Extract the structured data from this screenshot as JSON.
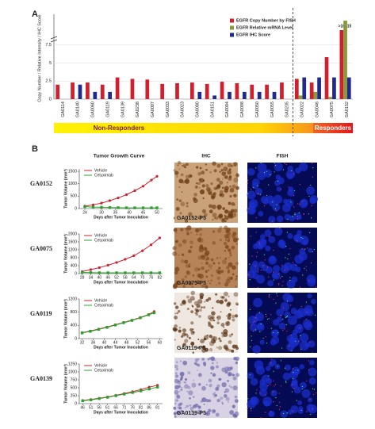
{
  "figure": {
    "panel_a": "A",
    "panel_b": "B",
    "banner": [
      "Non-Responders",
      "Responders"
    ],
    "columns": [
      "Tumor Growth Curve",
      "IHC",
      "FISH"
    ],
    "models": [
      "GA0152",
      "GA0075",
      "GA0119",
      "GA0139"
    ],
    "ihc_captions": [
      "GA0152-P5",
      "GA0075-P5",
      "GA0119-P5",
      "GA0139-P5"
    ]
  },
  "chart_data": [
    {
      "type": "bar",
      "ylabel": "Copy Number / Relative Intensity / IHC Score",
      "categories": [
        "GA0114",
        "GA0140",
        "GA0060",
        "GA0119",
        "GA0139",
        "GA0238",
        "GA0007",
        "GA0033",
        "GA0023",
        "GA0080",
        "GA0151",
        "GA0004",
        "GA0098",
        "GA0050",
        "GA0055",
        "GA0235",
        "GA0022",
        "GA0046",
        "GA0075",
        "GA0152"
      ],
      "series": [
        {
          "name": "EGFR Copy Number by FISH",
          "color": "#d0202e",
          "values": [
            2,
            2.3,
            2.3,
            2,
            3,
            2.8,
            2.7,
            2.1,
            2.2,
            2.3,
            2.1,
            2.4,
            2.2,
            2,
            2,
            2.3,
            2.8,
            2.3,
            5.8,
            12
          ],
          "value_labels": [
            null,
            null,
            null,
            null,
            null,
            null,
            null,
            null,
            null,
            null,
            null,
            null,
            null,
            null,
            null,
            null,
            null,
            null,
            null,
            ">10"
          ]
        },
        {
          "name": "EGFR Relative mRNA Level",
          "color": "#8a9a3a",
          "values": [
            null,
            null,
            null,
            null,
            null,
            null,
            null,
            null,
            null,
            null,
            null,
            null,
            null,
            null,
            null,
            null,
            0.5,
            1,
            0.3,
            15
          ],
          "value_labels": [
            null,
            null,
            null,
            null,
            null,
            null,
            null,
            null,
            null,
            null,
            null,
            null,
            null,
            null,
            null,
            null,
            null,
            null,
            null,
            "15"
          ]
        },
        {
          "name": "EGFR IHC Score",
          "color": "#1f2a8c",
          "values": [
            null,
            2,
            1,
            1,
            null,
            null,
            null,
            null,
            null,
            1,
            0.5,
            1,
            1,
            1,
            1,
            null,
            3,
            3,
            3,
            3
          ]
        }
      ],
      "ylim": [
        0,
        16
      ],
      "axis_break": [
        8,
        10
      ],
      "yticks": [
        0,
        2.5,
        5,
        7.5
      ],
      "grid": true,
      "legend": "upper right"
    },
    {
      "type": "line",
      "xlabel": "Days after Tumor Inoculation",
      "ylabel": "Tumor Volume (mm³)",
      "x": [
        24,
        27,
        30,
        33,
        36,
        39,
        42,
        45,
        48,
        50
      ],
      "series": [
        {
          "name": "Vehicle",
          "color": "#d0202e",
          "values": [
            100,
            150,
            220,
            320,
            430,
            560,
            720,
            900,
            1150,
            1300
          ]
        },
        {
          "name": "Cetuximab",
          "color": "#2ca02c",
          "values": [
            80,
            60,
            50,
            40,
            35,
            30,
            30,
            30,
            30,
            30
          ]
        }
      ],
      "xlim": [
        22,
        52
      ],
      "xticks": [
        24,
        30,
        35,
        40,
        45,
        50
      ],
      "ylim": [
        0,
        1600
      ],
      "yticks": [
        0,
        500,
        1000,
        1500
      ],
      "legend": "upper left"
    },
    {
      "type": "line",
      "xlabel": "Days after Tumor Inoculation",
      "ylabel": "Tumor Volume (mm³)",
      "x": [
        28,
        34,
        40,
        46,
        52,
        58,
        64,
        70,
        76,
        82
      ],
      "series": [
        {
          "name": "Vehicle",
          "color": "#d0202e",
          "values": [
            100,
            200,
            300,
            420,
            560,
            720,
            900,
            1150,
            1450,
            1800
          ]
        },
        {
          "name": "Cetuximab",
          "color": "#2ca02c",
          "values": [
            60,
            50,
            40,
            40,
            40,
            40,
            40,
            40,
            40,
            40
          ]
        }
      ],
      "xlim": [
        26,
        84
      ],
      "xticks": [
        28,
        34,
        40,
        46,
        52,
        58,
        64,
        70,
        76,
        82
      ],
      "ylim": [
        0,
        2000
      ],
      "yticks": [
        0,
        400,
        800,
        1200,
        1600,
        2000
      ],
      "legend": "upper left"
    },
    {
      "type": "line",
      "xlabel": "Days after Tumor Inoculation",
      "ylabel": "Tumor Volume (mm³)",
      "x": [
        32,
        35,
        38,
        41,
        44,
        47,
        50,
        53,
        56,
        58
      ],
      "series": [
        {
          "name": "Vehicle",
          "color": "#d0202e",
          "values": [
            180,
            230,
            290,
            350,
            420,
            490,
            560,
            640,
            730,
            820
          ]
        },
        {
          "name": "Cetuximab",
          "color": "#2ca02c",
          "values": [
            170,
            220,
            280,
            340,
            410,
            480,
            550,
            630,
            720,
            780
          ]
        }
      ],
      "xlim": [
        31,
        61
      ],
      "xticks": [
        32,
        36,
        40,
        44,
        48,
        52,
        56,
        60
      ],
      "ylim": [
        0,
        1200
      ],
      "yticks": [
        0,
        400,
        800,
        1200
      ],
      "legend": "upper left"
    },
    {
      "type": "line",
      "xlabel": "Days after Tumor Inoculation",
      "ylabel": "Tumor Volume (mm³)",
      "x": [
        46,
        51,
        56,
        61,
        66,
        71,
        76,
        81,
        86,
        91
      ],
      "series": [
        {
          "name": "Vehicle",
          "color": "#d0202e",
          "values": [
            100,
            130,
            170,
            210,
            260,
            320,
            380,
            440,
            520,
            580
          ]
        },
        {
          "name": "Cetuximab",
          "color": "#2ca02c",
          "values": [
            90,
            120,
            160,
            200,
            250,
            300,
            350,
            400,
            460,
            520
          ]
        }
      ],
      "xlim": [
        44,
        94
      ],
      "xticks": [
        46,
        51,
        56,
        61,
        66,
        71,
        76,
        81,
        86,
        91
      ],
      "ylim": [
        0,
        1250
      ],
      "yticks": [
        0,
        250,
        500,
        750,
        1000,
        1250
      ],
      "legend": "upper left"
    }
  ]
}
